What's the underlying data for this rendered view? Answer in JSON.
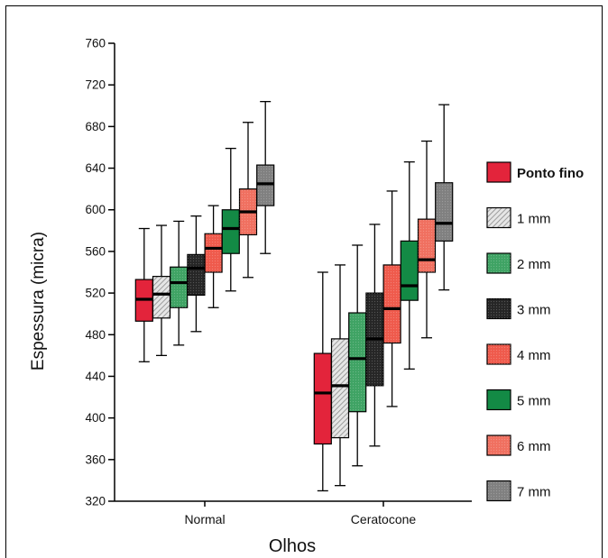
{
  "chart_data": {
    "type": "box",
    "xlabel": "Olhos",
    "ylabel": "Espessura (micra)",
    "ylim": [
      320,
      760
    ],
    "yticks": [
      320,
      360,
      400,
      440,
      480,
      520,
      560,
      600,
      640,
      680,
      720,
      760
    ],
    "categories": [
      "Normal",
      "Ceratocone"
    ],
    "legend_position": "right",
    "series": [
      {
        "name": "Ponto fino",
        "color": "#e3243b",
        "pattern": "solid",
        "boxes": [
          {
            "min": 454,
            "q1": 493,
            "median": 514,
            "q3": 533,
            "max": 582
          },
          {
            "min": 330,
            "q1": 375,
            "median": 424,
            "q3": 462,
            "max": 540
          }
        ]
      },
      {
        "name": "1 mm",
        "color": "#c8c8c8",
        "pattern": "hatch",
        "boxes": [
          {
            "min": 460,
            "q1": 496,
            "median": 519,
            "q3": 536,
            "max": 585
          },
          {
            "min": 335,
            "q1": 381,
            "median": 431,
            "q3": 476,
            "max": 547
          }
        ]
      },
      {
        "name": "2 mm",
        "color": "#3fa364",
        "pattern": "dots",
        "boxes": [
          {
            "min": 470,
            "q1": 506,
            "median": 530,
            "q3": 545,
            "max": 589
          },
          {
            "min": 354,
            "q1": 406,
            "median": 457,
            "q3": 501,
            "max": 566
          }
        ]
      },
      {
        "name": "3 mm",
        "color": "#262626",
        "pattern": "dots",
        "boxes": [
          {
            "min": 483,
            "q1": 518,
            "median": 544,
            "q3": 557,
            "max": 594
          },
          {
            "min": 373,
            "q1": 431,
            "median": 476,
            "q3": 520,
            "max": 586
          }
        ]
      },
      {
        "name": "4 mm",
        "color": "#ef5a4c",
        "pattern": "dots",
        "boxes": [
          {
            "min": 506,
            "q1": 540,
            "median": 563,
            "q3": 577,
            "max": 604
          },
          {
            "min": 411,
            "q1": 472,
            "median": 505,
            "q3": 547,
            "max": 618
          }
        ]
      },
      {
        "name": "5 mm",
        "color": "#138a45",
        "pattern": "solid",
        "boxes": [
          {
            "min": 522,
            "q1": 558,
            "median": 582,
            "q3": 600,
            "max": 659
          },
          {
            "min": 447,
            "q1": 513,
            "median": 527,
            "q3": 570,
            "max": 646
          }
        ]
      },
      {
        "name": "6 mm",
        "color": "#f07060",
        "pattern": "dots",
        "boxes": [
          {
            "min": 535,
            "q1": 576,
            "median": 598,
            "q3": 620,
            "max": 684
          },
          {
            "min": 477,
            "q1": 540,
            "median": 552,
            "q3": 591,
            "max": 666
          }
        ]
      },
      {
        "name": "7 mm",
        "color": "#808080",
        "pattern": "dots",
        "boxes": [
          {
            "min": 558,
            "q1": 604,
            "median": 625,
            "q3": 643,
            "max": 704
          },
          {
            "min": 523,
            "q1": 570,
            "median": 587,
            "q3": 626,
            "max": 701
          }
        ]
      }
    ]
  }
}
